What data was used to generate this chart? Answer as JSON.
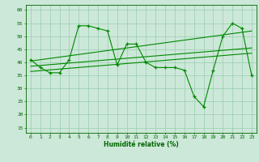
{
  "xlabel": "Humidité relative (%)",
  "xlim": [
    -0.5,
    23.5
  ],
  "ylim": [
    13,
    62
  ],
  "yticks": [
    15,
    20,
    25,
    30,
    35,
    40,
    45,
    50,
    55,
    60
  ],
  "xticks": [
    0,
    1,
    2,
    3,
    4,
    5,
    6,
    7,
    8,
    9,
    10,
    11,
    12,
    13,
    14,
    15,
    16,
    17,
    18,
    19,
    20,
    21,
    22,
    23
  ],
  "bg_color": "#cce8d8",
  "grid_color": "#99ccb0",
  "line_color": "#008800",
  "main_line": [
    41,
    38,
    36,
    36,
    41,
    54,
    54,
    53,
    52,
    39,
    47,
    47,
    40,
    38,
    38,
    38,
    37,
    27,
    23,
    37,
    50,
    55,
    53,
    35
  ],
  "trend1_x": [
    0,
    23
  ],
  "trend1_y": [
    40.5,
    52.0
  ],
  "trend2_x": [
    0,
    23
  ],
  "trend2_y": [
    38.5,
    45.5
  ],
  "trend3_x": [
    0,
    23
  ],
  "trend3_y": [
    36.5,
    43.5
  ]
}
